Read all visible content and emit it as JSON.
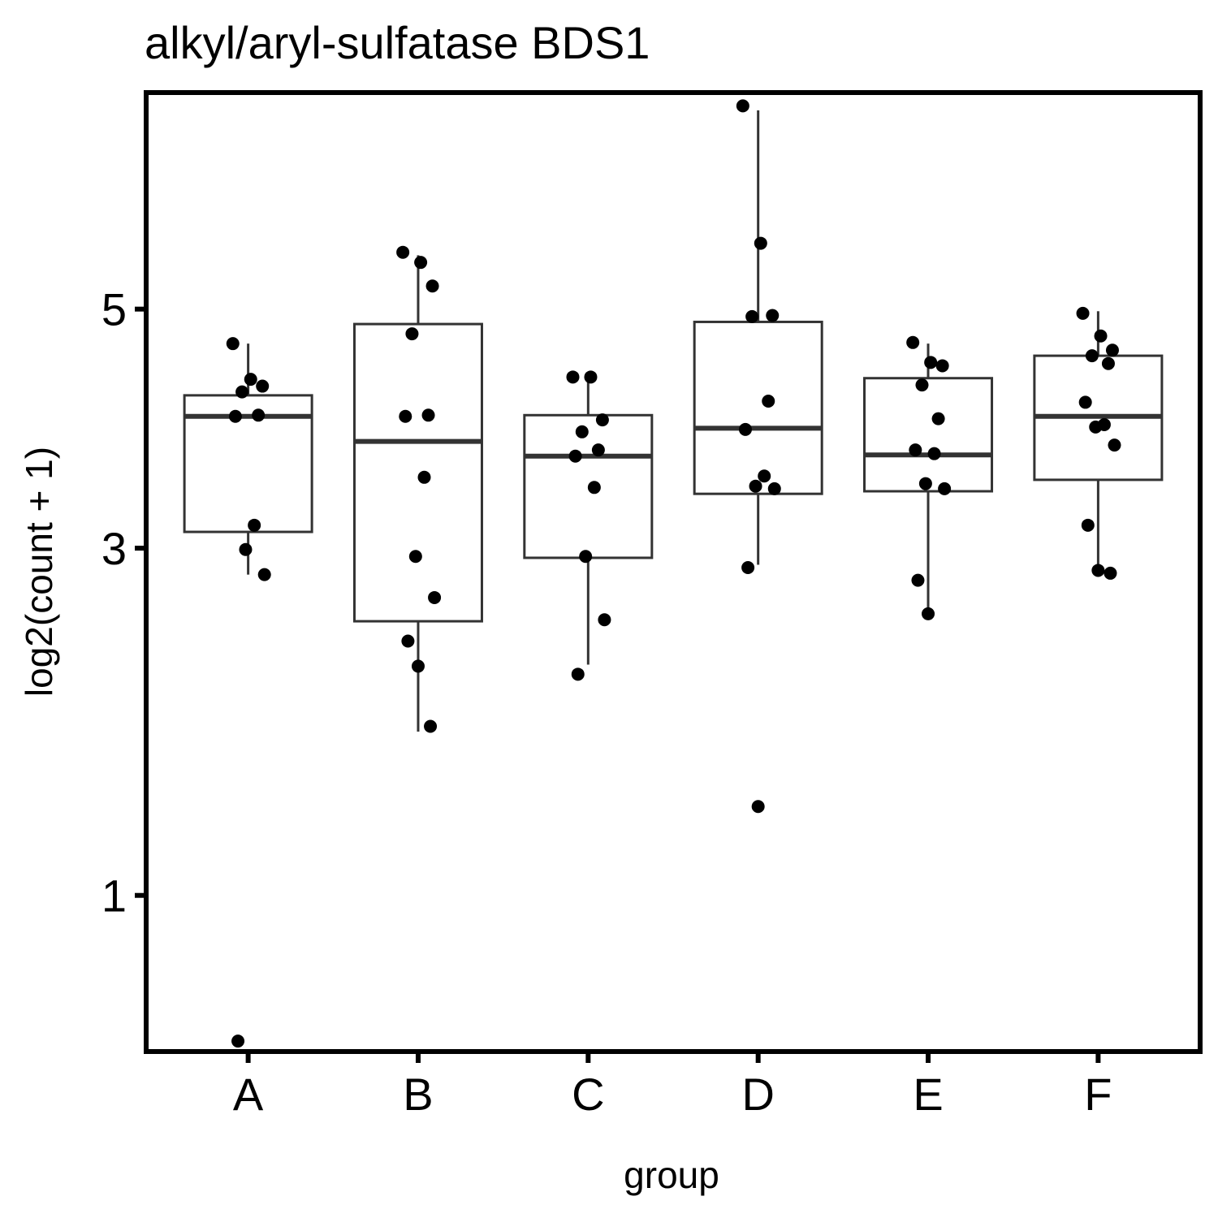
{
  "chart_data": {
    "type": "box",
    "title": "alkyl/aryl-sulfatase BDS1",
    "xlabel": "group",
    "ylabel": "log2(count + 1)",
    "y_scale": "sqrt",
    "y_ticks": [
      1,
      3,
      5
    ],
    "ylim": [
      0.45,
      7.25
    ],
    "grid": false,
    "categories": [
      "A",
      "B",
      "C",
      "D",
      "E",
      "F"
    ],
    "boxes": [
      {
        "group": "A",
        "lower_whisker": 2.81,
        "q1": 3.12,
        "median": 4.04,
        "q3": 4.22,
        "upper_whisker": 4.68
      },
      {
        "group": "B",
        "lower_whisker": 1.81,
        "q1": 2.49,
        "median": 3.83,
        "q3": 4.86,
        "upper_whisker": 5.52
      },
      {
        "group": "C",
        "lower_whisker": 2.21,
        "q1": 2.93,
        "median": 3.71,
        "q3": 4.05,
        "upper_whisker": 4.39
      },
      {
        "group": "D",
        "lower_whisker": 2.88,
        "q1": 3.41,
        "median": 3.94,
        "q3": 4.88,
        "upper_whisker": 7.05
      },
      {
        "group": "E",
        "lower_whisker": 2.56,
        "q1": 3.43,
        "median": 3.72,
        "q3": 4.37,
        "upper_whisker": 4.68
      },
      {
        "group": "F",
        "lower_whisker": 2.81,
        "q1": 3.52,
        "median": 4.04,
        "q3": 4.57,
        "upper_whisker": 4.98
      }
    ],
    "points": [
      {
        "group": "A",
        "values": [
          4.68,
          4.36,
          4.3,
          4.25,
          4.05,
          4.04,
          3.17,
          2.99,
          2.81,
          0.48
        ]
      },
      {
        "group": "B",
        "values": [
          5.55,
          5.45,
          5.22,
          4.77,
          4.05,
          4.04,
          3.54,
          2.94,
          2.65,
          2.36,
          2.2,
          1.84
        ]
      },
      {
        "group": "C",
        "values": [
          4.38,
          4.38,
          4.01,
          3.91,
          3.76,
          3.71,
          3.46,
          2.94,
          2.5,
          2.15
        ]
      },
      {
        "group": "D",
        "values": [
          7.1,
          5.64,
          4.94,
          4.93,
          4.17,
          3.93,
          3.55,
          3.47,
          3.45,
          2.86,
          1.41
        ]
      },
      {
        "group": "E",
        "values": [
          4.69,
          4.51,
          4.48,
          4.31,
          4.02,
          3.76,
          3.73,
          3.49,
          3.45,
          2.77,
          2.54
        ]
      },
      {
        "group": "F",
        "values": [
          4.96,
          4.75,
          4.62,
          4.57,
          4.5,
          4.16,
          3.97,
          3.95,
          3.8,
          3.17,
          2.84,
          2.82
        ]
      }
    ]
  }
}
